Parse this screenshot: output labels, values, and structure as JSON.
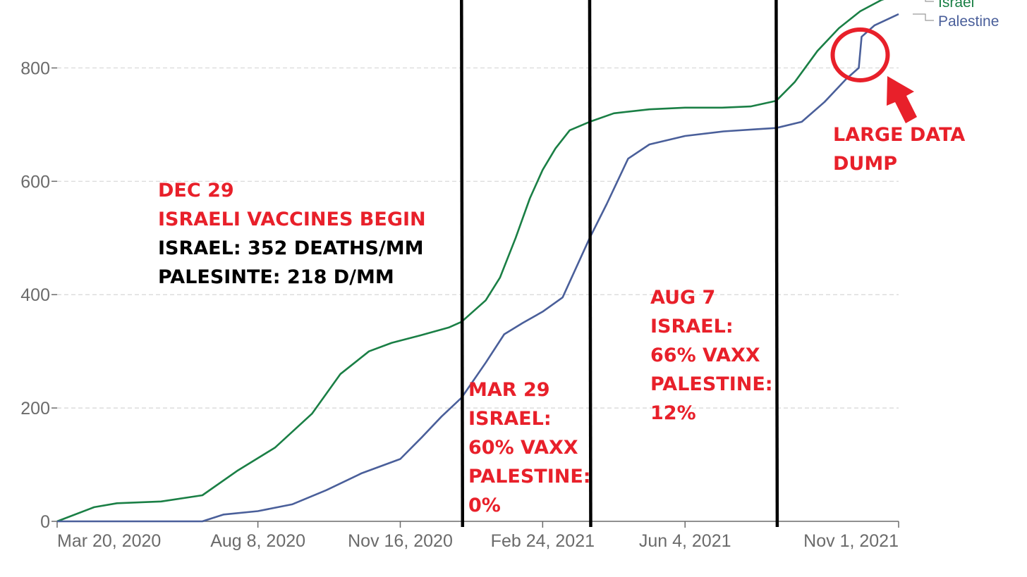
{
  "chart_data": {
    "type": "line",
    "title": "",
    "xlabel": "",
    "ylabel": "",
    "ylim": [
      0,
      900
    ],
    "y_ticks": [
      0,
      200,
      400,
      600,
      800
    ],
    "y_tick_labels": [
      "0",
      "200",
      "400",
      "600",
      "800"
    ],
    "x_ticks": [
      "2020-03-20",
      "2020-08-08",
      "2020-11-16",
      "2021-02-24",
      "2021-06-04",
      "2021-11-01"
    ],
    "x_tick_labels": [
      "Mar 20, 2020",
      "Aug 8, 2020",
      "Nov 16, 2020",
      "Feb 24, 2021",
      "Jun 4, 2021",
      "Nov 1, 2021"
    ],
    "xlim": [
      "2020-03-20",
      "2021-11-01"
    ],
    "grid": true,
    "legend_position": "top-right",
    "series": [
      {
        "name": "Israel",
        "color": "#1a7f45",
        "x": [
          "2020-03-20",
          "2020-04-15",
          "2020-05-01",
          "2020-06-01",
          "2020-06-30",
          "2020-07-25",
          "2020-08-20",
          "2020-09-15",
          "2020-10-05",
          "2020-10-25",
          "2020-11-10",
          "2020-11-30",
          "2020-12-20",
          "2020-12-29",
          "2021-01-15",
          "2021-01-25",
          "2021-02-05",
          "2021-02-15",
          "2021-02-24",
          "2021-03-05",
          "2021-03-15",
          "2021-03-29",
          "2021-04-15",
          "2021-05-10",
          "2021-06-04",
          "2021-06-30",
          "2021-07-20",
          "2021-08-07",
          "2021-08-20",
          "2021-09-05",
          "2021-09-20",
          "2021-10-05",
          "2021-10-20",
          "2021-11-01"
        ],
        "values": [
          0,
          25,
          32,
          35,
          46,
          90,
          130,
          190,
          260,
          300,
          315,
          328,
          342,
          352,
          390,
          430,
          500,
          570,
          620,
          658,
          690,
          705,
          720,
          727,
          730,
          730,
          732,
          742,
          775,
          830,
          870,
          900,
          920,
          930
        ]
      },
      {
        "name": "Palestine",
        "color": "#4a5f9a",
        "x": [
          "2020-03-20",
          "2020-06-30",
          "2020-07-15",
          "2020-08-08",
          "2020-09-01",
          "2020-09-25",
          "2020-10-20",
          "2020-11-16",
          "2020-12-01",
          "2020-12-15",
          "2020-12-29",
          "2021-01-15",
          "2021-01-28",
          "2021-02-10",
          "2021-02-24",
          "2021-03-10",
          "2021-03-29",
          "2021-04-10",
          "2021-04-25",
          "2021-05-10",
          "2021-06-04",
          "2021-07-01",
          "2021-07-25",
          "2021-08-07",
          "2021-08-25",
          "2021-09-10",
          "2021-09-25",
          "2021-10-04",
          "2021-10-06",
          "2021-10-15",
          "2021-11-01"
        ],
        "values": [
          0,
          0,
          12,
          18,
          30,
          55,
          85,
          110,
          148,
          185,
          218,
          280,
          330,
          350,
          370,
          395,
          500,
          560,
          640,
          665,
          680,
          688,
          692,
          694,
          705,
          740,
          780,
          800,
          855,
          875,
          895
        ]
      }
    ],
    "annotations": [
      {
        "id": "dec29",
        "lines": [
          {
            "text": "DEC 29",
            "color": "#e8202a"
          },
          {
            "text": "ISRAELI VACCINES BEGIN",
            "color": "#e8202a"
          },
          {
            "text": "ISRAEL: 352 DEATHS/MM",
            "color": "#000000"
          },
          {
            "text": "PALESINTE: 218 D/MM",
            "color": "#000000"
          }
        ]
      },
      {
        "id": "mar29",
        "lines": [
          {
            "text": "MAR 29",
            "color": "#e8202a"
          },
          {
            "text": "ISRAEL:",
            "color": "#e8202a"
          },
          {
            "text": "60% VAXX",
            "color": "#e8202a"
          },
          {
            "text": "PALESTINE:",
            "color": "#e8202a"
          },
          {
            "text": "0%",
            "color": "#e8202a"
          }
        ]
      },
      {
        "id": "aug7",
        "lines": [
          {
            "text": "AUG 7",
            "color": "#e8202a"
          },
          {
            "text": "ISRAEL:",
            "color": "#e8202a"
          },
          {
            "text": "66% VAXX",
            "color": "#e8202a"
          },
          {
            "text": "PALESTINE:",
            "color": "#e8202a"
          },
          {
            "text": "12%",
            "color": "#e8202a"
          }
        ]
      },
      {
        "id": "dump",
        "lines": [
          {
            "text": "LARGE DATA",
            "color": "#e8202a"
          },
          {
            "text": "DUMP",
            "color": "#e8202a"
          }
        ]
      }
    ],
    "marker_dates": [
      "2020-12-29",
      "2021-03-29",
      "2021-08-07"
    ],
    "highlight_date": "2021-10-05",
    "colors": {
      "axis": "#6b6b6b",
      "grid": "#d6d6d6",
      "marker_line": "#000000",
      "highlight": "#e8202a"
    }
  }
}
